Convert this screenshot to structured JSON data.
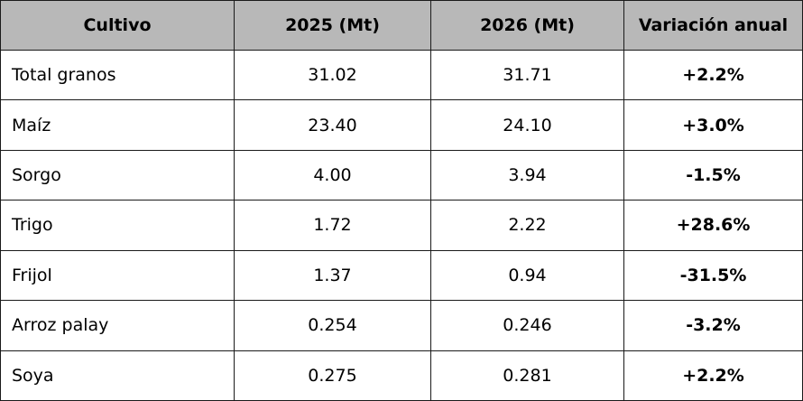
{
  "table": {
    "headers": [
      "Cultivo",
      "2025 (Mt)",
      "2026 (Mt)",
      "Variación anual"
    ],
    "rows": [
      [
        "Total granos",
        "31.02",
        "31.71",
        "+2.2%"
      ],
      [
        "Maíz",
        "23.40",
        "24.10",
        "+3.0%"
      ],
      [
        "Sorgo",
        "4.00",
        "3.94",
        "-1.5%"
      ],
      [
        "Trigo",
        "1.72",
        "2.22",
        "+28.6%"
      ],
      [
        "Frijol",
        "1.37",
        "0.94",
        "-31.5%"
      ],
      [
        "Arroz palay",
        "0.254",
        "0.246",
        "-3.2%"
      ],
      [
        "Soya",
        "0.275",
        "0.281",
        "+2.2%"
      ]
    ]
  }
}
